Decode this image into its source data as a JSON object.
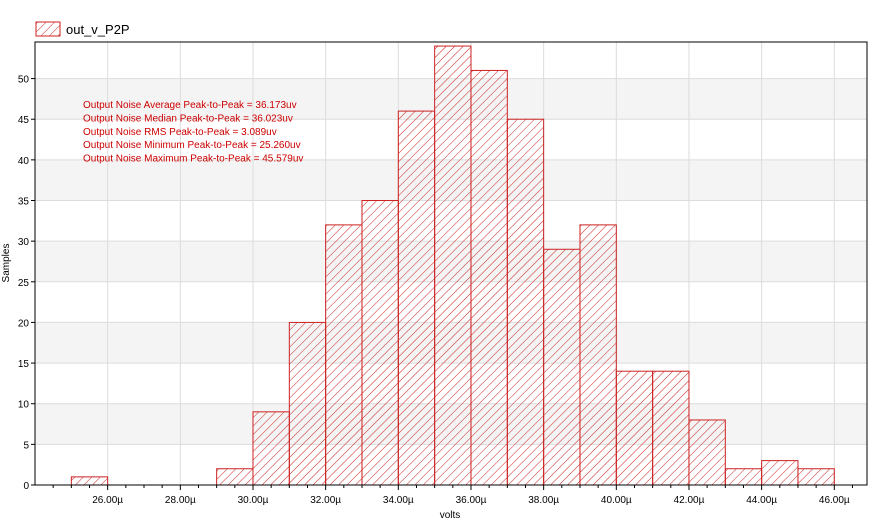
{
  "chart_data": {
    "type": "bar",
    "title": "",
    "xlabel": "volts",
    "ylabel": "Samples",
    "xlim": [
      24.0,
      46.9
    ],
    "ylim": [
      0,
      54.5
    ],
    "x_ticks": [
      26,
      28,
      30,
      32,
      34,
      36,
      38,
      40,
      42,
      44,
      46
    ],
    "x_tick_labels": [
      "26.00µ",
      "28.00µ",
      "30.00µ",
      "32.00µ",
      "34.00µ",
      "36.00µ",
      "38.00µ",
      "40.00µ",
      "42.00µ",
      "44.00µ",
      "46.00µ"
    ],
    "y_ticks": [
      0,
      5,
      10,
      15,
      20,
      25,
      30,
      35,
      40,
      45,
      50
    ],
    "y_tick_labels": [
      "0",
      "5",
      "10",
      "15",
      "20",
      "25",
      "30",
      "35",
      "40",
      "45",
      "50"
    ],
    "x_unit": "µV",
    "bin_width": 1.0,
    "bin_starts": [
      25,
      26,
      27,
      28,
      29,
      30,
      31,
      32,
      33,
      34,
      35,
      36,
      37,
      38,
      39,
      40,
      41,
      42,
      43,
      44,
      45
    ],
    "series": [
      {
        "name": "out_v_P2P",
        "values": [
          1,
          0,
          0,
          0,
          2,
          9,
          20,
          32,
          35,
          46,
          54,
          51,
          45,
          29,
          32,
          14,
          14,
          8,
          2,
          3,
          2
        ]
      }
    ],
    "grid": true,
    "legend_position": "top-left",
    "annotations": [
      "Output Noise Average Peak-to-Peak = 36.173uv",
      "Output Noise Median Peak-to-Peak = 36.023uv",
      "Output Noise RMS Peak-to-Peak = 3.089uv",
      "Output Noise Minimum Peak-to-Peak = 25.260uv",
      "Output Noise Maximum Peak-to-Peak = 45.579uv"
    ],
    "colors": {
      "series": "#cc2222",
      "annotation_text": "#cc0000",
      "band_light": "#f4f4f4",
      "band_white": "#ffffff",
      "grid": "#dcdcdc",
      "axis": "#000000"
    }
  }
}
